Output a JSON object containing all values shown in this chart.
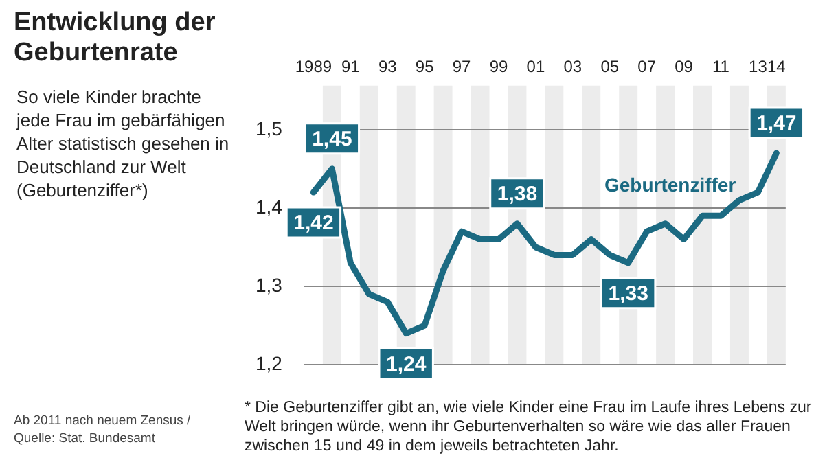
{
  "chart_data": {
    "type": "line",
    "title": "Entwicklung der Geburtenrate",
    "subtitle": "So viele Kinder brachte jede Frau im gebärfähigen Alter statistisch gesehen in Deutschland zur Welt (Geburtenziffer*)",
    "categories": [
      "1989",
      null,
      "91",
      null,
      "93",
      null,
      "95",
      null,
      "97",
      null,
      "99",
      null,
      "01",
      null,
      "03",
      null,
      "05",
      null,
      "07",
      null,
      "09",
      null,
      "11",
      null,
      "13",
      "14"
    ],
    "series": [
      {
        "name": "Geburtenziffer",
        "color": "#1b6a82",
        "values": [
          1.42,
          1.45,
          1.33,
          1.29,
          1.28,
          1.24,
          1.25,
          1.32,
          1.37,
          1.36,
          1.36,
          1.38,
          1.35,
          1.34,
          1.34,
          1.36,
          1.34,
          1.33,
          1.37,
          1.38,
          1.36,
          1.39,
          1.39,
          1.41,
          1.42,
          1.47
        ],
        "value_labels": [
          "1,42",
          "1,45",
          null,
          null,
          null,
          "1,24",
          null,
          null,
          null,
          null,
          null,
          "1,38",
          null,
          null,
          null,
          null,
          null,
          "1,33",
          null,
          null,
          null,
          null,
          null,
          null,
          null,
          "1,47"
        ]
      }
    ],
    "ylim": [
      1.2,
      1.5
    ],
    "yticks": [
      {
        "value": 1.2,
        "label": "1,2"
      },
      {
        "value": 1.3,
        "label": "1,3"
      },
      {
        "value": 1.4,
        "label": "1,4"
      },
      {
        "value": 1.5,
        "label": "1,5"
      }
    ],
    "grid": "y",
    "legend": false,
    "marker": "none",
    "line_style": "solid",
    "annotations": [
      "* Die Geburtenziffer gibt an, wie viele Kinder eine Frau im Laufe ihres Lebens zur Welt bringen würde, wenn ihr Geburtenverhalten so wäre wie das aller Frauen zwischen 15 und 49 in dem jeweils betrachteten Jahr.",
      "Ab 2011 nach neuem Zensus / Quelle: Stat. Bundesamt"
    ]
  }
}
